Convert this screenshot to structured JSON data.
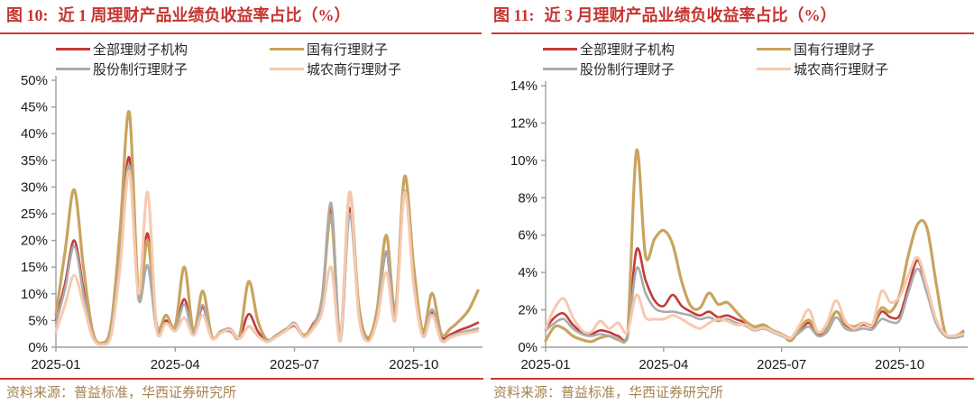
{
  "source_note": "资料来源：普益标准，华西证券研究所",
  "colors": {
    "title_red": "#c53430",
    "rule_red": "#cc3a30",
    "source_brown": "#a5824e",
    "axis_gray": "#9e9e9e",
    "label_black": "#1a1a1a"
  },
  "chart_data": [
    {
      "type": "line",
      "figure_label": "图 10:",
      "title": "近 1 周理财产品业绩负收益率占比（%）",
      "legend_position": "top",
      "grid": false,
      "ylim": [
        0,
        50
      ],
      "y_tick_labels": [
        "0%",
        "5%",
        "10%",
        "15%",
        "20%",
        "25%",
        "30%",
        "35%",
        "40%",
        "45%",
        "50%"
      ],
      "x_tick_labels": [
        "2025-01",
        "2025-04",
        "2025-07",
        "2025-10"
      ],
      "x_tick_indices": [
        0,
        13,
        26,
        39
      ],
      "x": [
        "2025-01-01",
        "2025-01-08",
        "2025-01-15",
        "2025-01-22",
        "2025-01-29",
        "2025-02-05",
        "2025-02-12",
        "2025-02-19",
        "2025-02-26",
        "2025-03-05",
        "2025-03-12",
        "2025-03-19",
        "2025-03-26",
        "2025-04-02",
        "2025-04-09",
        "2025-04-16",
        "2025-04-23",
        "2025-04-30",
        "2025-05-07",
        "2025-05-14",
        "2025-05-21",
        "2025-05-28",
        "2025-06-04",
        "2025-06-11",
        "2025-06-18",
        "2025-06-25",
        "2025-07-02",
        "2025-07-09",
        "2025-07-16",
        "2025-07-23",
        "2025-07-30",
        "2025-08-06",
        "2025-08-13",
        "2025-08-20",
        "2025-08-27",
        "2025-09-03",
        "2025-09-10",
        "2025-09-17",
        "2025-09-24",
        "2025-10-01",
        "2025-10-08",
        "2025-10-15",
        "2025-10-22",
        "2025-10-29",
        "2025-11-05",
        "2025-11-12",
        "2025-11-19"
      ],
      "series": [
        {
          "name": "全部理财子机构",
          "color": "#c23b38",
          "values": [
            5.0,
            12.0,
            20.0,
            11.0,
            2.5,
            0.7,
            3.0,
            18.0,
            35.5,
            9.5,
            21.3,
            3.5,
            5.0,
            3.5,
            9.0,
            2.6,
            7.5,
            1.8,
            2.8,
            3.0,
            1.8,
            6.2,
            3.0,
            1.2,
            2.0,
            3.0,
            4.0,
            2.1,
            4.3,
            8.5,
            26.0,
            1.5,
            26.0,
            7.0,
            1.4,
            6.0,
            17.5,
            6.0,
            29.0,
            12.0,
            2.5,
            6.5,
            1.8,
            2.4,
            3.2,
            3.8,
            4.6
          ]
        },
        {
          "name": "国有行理财子",
          "color": "#c9a35f",
          "values": [
            6.0,
            18.0,
            29.5,
            15.0,
            3.0,
            0.8,
            4.0,
            22.0,
            44.0,
            10.0,
            20.0,
            4.0,
            6.0,
            4.0,
            15.0,
            3.0,
            10.5,
            2.0,
            3.0,
            3.4,
            2.0,
            12.3,
            5.0,
            1.4,
            2.2,
            3.3,
            4.2,
            2.3,
            3.9,
            9.0,
            24.5,
            2.0,
            29.0,
            8.0,
            1.8,
            7.0,
            21.0,
            7.0,
            32.0,
            15.0,
            3.0,
            10.1,
            2.5,
            3.5,
            5.0,
            7.0,
            10.6
          ]
        },
        {
          "name": "股份制行理财子",
          "color": "#ababab",
          "values": [
            4.5,
            11.0,
            19.0,
            10.0,
            2.0,
            0.5,
            2.5,
            17.0,
            34.0,
            9.0,
            15.3,
            3.0,
            4.5,
            3.2,
            8.0,
            2.4,
            7.9,
            1.7,
            2.9,
            3.4,
            1.7,
            3.9,
            2.2,
            1.1,
            2.0,
            3.1,
            4.6,
            2.0,
            3.6,
            9.0,
            27.0,
            1.2,
            25.0,
            6.5,
            1.2,
            5.5,
            18.0,
            5.8,
            29.3,
            12.0,
            2.2,
            7.1,
            1.5,
            2.1,
            2.7,
            3.1,
            3.5
          ]
        },
        {
          "name": "城农商行理财子",
          "color": "#f6c9ae",
          "values": [
            3.0,
            8.0,
            13.5,
            8.0,
            1.8,
            0.5,
            2.0,
            15.0,
            33.0,
            10.0,
            29.0,
            3.0,
            4.5,
            3.0,
            5.5,
            2.2,
            6.0,
            1.6,
            2.7,
            3.2,
            1.6,
            3.8,
            2.1,
            1.0,
            1.9,
            3.0,
            4.3,
            1.9,
            3.4,
            6.5,
            15.0,
            1.1,
            29.0,
            6.0,
            1.1,
            5.0,
            14.0,
            5.2,
            29.0,
            11.5,
            2.0,
            6.0,
            1.2,
            1.8,
            2.4,
            2.7,
            3.0
          ]
        }
      ]
    },
    {
      "type": "line",
      "figure_label": "图 11:",
      "title": "近 3 月理财产品业绩负收益率占比（%）",
      "legend_position": "top",
      "grid": false,
      "ylim": [
        0,
        14
      ],
      "y_tick_labels": [
        "0%",
        "2%",
        "4%",
        "6%",
        "8%",
        "10%",
        "12%",
        "14%"
      ],
      "x_tick_labels": [
        "2025-01",
        "2025-04",
        "2025-07",
        "2025-10"
      ],
      "x_tick_indices": [
        0,
        13,
        26,
        39
      ],
      "x": [
        "2025-01-01",
        "2025-01-08",
        "2025-01-15",
        "2025-01-22",
        "2025-01-29",
        "2025-02-05",
        "2025-02-12",
        "2025-02-19",
        "2025-02-26",
        "2025-03-05",
        "2025-03-12",
        "2025-03-19",
        "2025-03-26",
        "2025-04-02",
        "2025-04-09",
        "2025-04-16",
        "2025-04-23",
        "2025-04-30",
        "2025-05-07",
        "2025-05-14",
        "2025-05-21",
        "2025-05-28",
        "2025-06-04",
        "2025-06-11",
        "2025-06-18",
        "2025-06-25",
        "2025-07-02",
        "2025-07-09",
        "2025-07-16",
        "2025-07-23",
        "2025-07-30",
        "2025-08-06",
        "2025-08-13",
        "2025-08-20",
        "2025-08-27",
        "2025-09-03",
        "2025-09-10",
        "2025-09-17",
        "2025-09-24",
        "2025-10-01",
        "2025-10-08",
        "2025-10-15",
        "2025-10-22",
        "2025-10-29",
        "2025-11-05",
        "2025-11-12",
        "2025-11-19"
      ],
      "series": [
        {
          "name": "全部理财子机构",
          "color": "#c23b38",
          "values": [
            1.0,
            1.6,
            1.8,
            1.2,
            0.8,
            0.7,
            0.9,
            0.8,
            0.6,
            0.6,
            5.2,
            3.6,
            2.5,
            2.2,
            2.8,
            2.2,
            1.9,
            1.7,
            1.9,
            1.6,
            1.7,
            1.5,
            1.3,
            1.0,
            1.1,
            0.9,
            0.7,
            0.5,
            0.9,
            1.3,
            0.7,
            0.9,
            1.9,
            1.2,
            1.0,
            1.2,
            1.1,
            1.9,
            1.6,
            1.7,
            3.3,
            4.65,
            3.1,
            1.4,
            0.65,
            0.55,
            0.85
          ]
        },
        {
          "name": "国有行理财子",
          "color": "#c9a35f",
          "values": [
            0.35,
            1.1,
            1.0,
            0.6,
            0.4,
            0.3,
            0.5,
            0.6,
            0.4,
            0.5,
            10.5,
            4.9,
            5.8,
            6.25,
            5.5,
            3.5,
            2.2,
            2.1,
            2.9,
            2.3,
            2.4,
            1.9,
            1.4,
            1.1,
            1.2,
            0.9,
            0.7,
            0.35,
            1.0,
            1.45,
            0.8,
            1.0,
            1.9,
            1.3,
            1.1,
            1.3,
            1.2,
            2.1,
            1.9,
            2.8,
            5.0,
            6.6,
            6.4,
            3.5,
            0.8,
            0.6,
            0.8
          ]
        },
        {
          "name": "股份制行理财子",
          "color": "#ababab",
          "values": [
            0.9,
            1.3,
            1.5,
            1.0,
            0.7,
            0.6,
            0.7,
            0.6,
            0.45,
            0.5,
            4.2,
            2.9,
            2.1,
            1.9,
            1.9,
            1.8,
            1.7,
            1.5,
            1.6,
            1.4,
            1.5,
            1.3,
            1.15,
            0.9,
            1.0,
            0.8,
            0.6,
            0.45,
            0.8,
            1.1,
            0.6,
            0.8,
            1.6,
            1.0,
            0.9,
            1.0,
            0.95,
            1.5,
            1.35,
            1.45,
            3.0,
            4.2,
            2.9,
            1.3,
            0.6,
            0.5,
            0.6
          ]
        },
        {
          "name": "城农商行理财子",
          "color": "#f6c9ae",
          "values": [
            1.0,
            2.1,
            2.6,
            1.6,
            0.9,
            0.8,
            1.4,
            1.0,
            1.3,
            0.8,
            2.8,
            1.6,
            1.5,
            1.5,
            1.7,
            1.5,
            1.2,
            1.0,
            1.3,
            1.5,
            1.4,
            1.2,
            1.2,
            0.95,
            1.05,
            0.85,
            0.65,
            0.5,
            1.2,
            2.0,
            0.8,
            1.3,
            2.5,
            1.4,
            1.0,
            1.3,
            1.2,
            3.0,
            2.4,
            2.7,
            3.9,
            4.8,
            3.3,
            1.5,
            0.7,
            0.6,
            0.7
          ]
        }
      ]
    }
  ]
}
